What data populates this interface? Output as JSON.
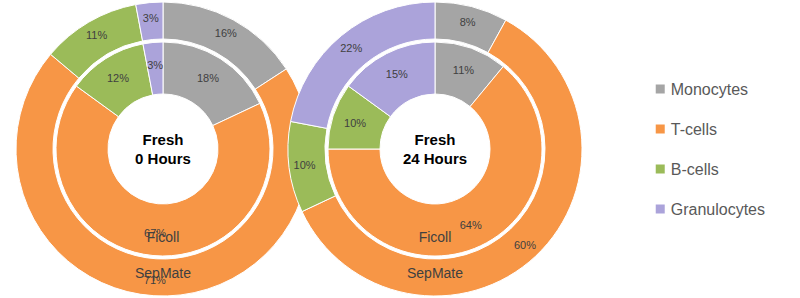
{
  "chart_data": [
    {
      "type": "pie",
      "title": "Fresh\n0 Hours",
      "categories": [
        "Monocytes",
        "T-cells",
        "B-cells",
        "Granulocytes"
      ],
      "colors": [
        "#a5a5a5",
        "#f79646",
        "#9bbb59",
        "#aba3da"
      ],
      "series": [
        {
          "name": "Ficoll",
          "values": [
            18,
            67,
            12,
            3
          ],
          "value_labels": [
            "18%",
            "67%",
            "12%",
            "3%"
          ]
        },
        {
          "name": "SepMate",
          "values": [
            16,
            71,
            11,
            3
          ],
          "value_labels": [
            "16%",
            "71%",
            "11%",
            "3%"
          ]
        }
      ],
      "data_labels": true
    },
    {
      "type": "pie",
      "title": "Fresh\n24 Hours",
      "categories": [
        "Monocytes",
        "T-cells",
        "B-cells",
        "Granulocytes"
      ],
      "colors": [
        "#a5a5a5",
        "#f79646",
        "#9bbb59",
        "#aba3da"
      ],
      "series": [
        {
          "name": "Ficoll",
          "values": [
            11,
            64,
            10,
            15
          ],
          "value_labels": [
            "11%",
            "64%",
            "10%",
            "15%"
          ]
        },
        {
          "name": "SepMate",
          "values": [
            8,
            60,
            10,
            22
          ],
          "value_labels": [
            "8%",
            "60%",
            "10%",
            "22%"
          ]
        }
      ],
      "data_labels": true,
      "legend": "right"
    }
  ]
}
